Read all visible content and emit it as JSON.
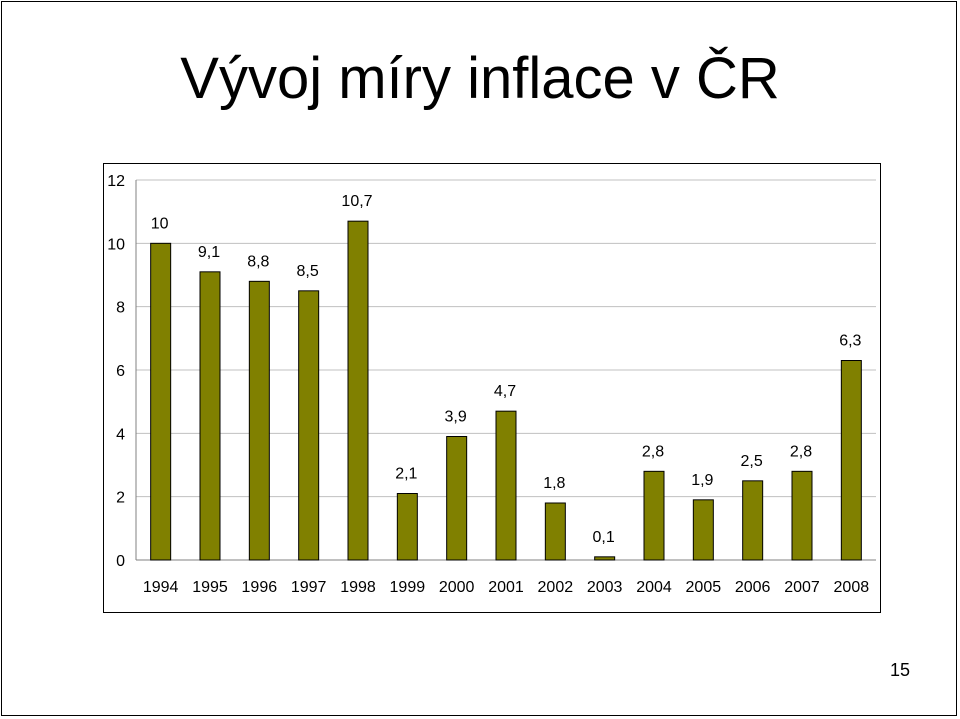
{
  "slide": {
    "title": "Vývoj míry inflace v ČR",
    "page_number": "15"
  },
  "colors": {
    "bar_fill": "#808000",
    "bar_stroke": "#000000",
    "gridline": "#c0c0c0"
  },
  "chart_data": {
    "type": "bar",
    "title": "",
    "xlabel": "",
    "ylabel": "",
    "ylim": [
      0,
      12
    ],
    "yticks": [
      0,
      2,
      4,
      6,
      8,
      10,
      12
    ],
    "grid": true,
    "legend": "none",
    "categories": [
      "1994",
      "1995",
      "1996",
      "1997",
      "1998",
      "1999",
      "2000",
      "2001",
      "2002",
      "2003",
      "2004",
      "2005",
      "2006",
      "2007",
      "2008"
    ],
    "values": [
      10,
      9.1,
      8.8,
      8.5,
      10.7,
      2.1,
      3.9,
      4.7,
      1.8,
      0.1,
      2.8,
      1.9,
      2.5,
      2.8,
      6.3
    ],
    "value_labels": [
      "10",
      "9,1",
      "8,8",
      "8,5",
      "10,7",
      "2,1",
      "3,9",
      "4,7",
      "1,8",
      "0,1",
      "2,8",
      "1,9",
      "2,5",
      "2,8",
      "6,3"
    ]
  }
}
